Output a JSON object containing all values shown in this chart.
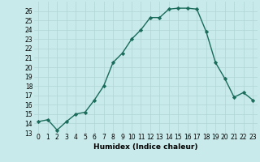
{
  "x": [
    0,
    1,
    2,
    3,
    4,
    5,
    6,
    7,
    8,
    9,
    10,
    11,
    12,
    13,
    14,
    15,
    16,
    17,
    18,
    19,
    20,
    21,
    22,
    23
  ],
  "y": [
    14.2,
    14.4,
    13.3,
    14.2,
    15.0,
    15.2,
    16.5,
    18.0,
    20.5,
    21.5,
    23.0,
    24.0,
    25.3,
    25.3,
    26.2,
    26.3,
    26.3,
    26.2,
    23.8,
    20.5,
    18.8,
    16.8,
    17.3,
    16.5
  ],
  "line_color": "#1a6b5a",
  "marker": "D",
  "markersize": 2.2,
  "linewidth": 1.0,
  "xlabel": "Humidex (Indice chaleur)",
  "xlim": [
    -0.5,
    23.5
  ],
  "ylim": [
    13,
    27
  ],
  "yticks": [
    13,
    14,
    15,
    16,
    17,
    18,
    19,
    20,
    21,
    22,
    23,
    24,
    25,
    26
  ],
  "xticks": [
    0,
    1,
    2,
    3,
    4,
    5,
    6,
    7,
    8,
    9,
    10,
    11,
    12,
    13,
    14,
    15,
    16,
    17,
    18,
    19,
    20,
    21,
    22,
    23
  ],
  "bg_color": "#c8eaea",
  "grid_color": "#b0d4d4",
  "label_fontsize": 6.5,
  "tick_fontsize": 5.5
}
